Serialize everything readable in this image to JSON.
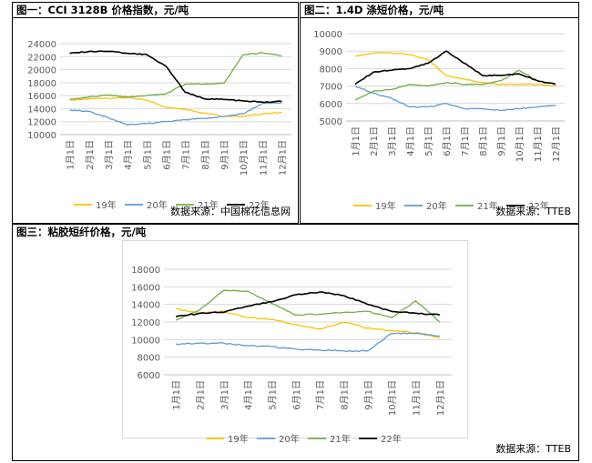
{
  "panels": [
    {
      "title": "图一：CCI 3128B 价格指数，元/吨",
      "source": "数据来源：中国棉花信息网"
    },
    {
      "title": "图二：1.4D 涤短价格，元/吨",
      "source": "数据来源：TTEB"
    },
    {
      "title": "图三：粘胶短纤价格，元/吨",
      "source": "数据来源：TTEB"
    }
  ],
  "colors": {
    "19年": "#FFC000",
    "20年": "#5B9BD5",
    "21年": "#70AD47",
    "22年": "#000000",
    "grid": "#D9D9D9"
  },
  "chart_data": [
    {
      "type": "line",
      "title": "图一：CCI 3128B 价格指数，元/吨",
      "categories": [
        "1月1日",
        "2月1日",
        "3月1日",
        "4月1日",
        "5月1日",
        "6月1日",
        "7月1日",
        "8月1日",
        "9月1日",
        "10月1日",
        "11月1日",
        "12月1日"
      ],
      "y_ticks": [
        10000,
        12000,
        14000,
        16000,
        18000,
        20000,
        22000,
        24000
      ],
      "ylim": [
        10000,
        24000
      ],
      "legend": "bottom",
      "series": [
        {
          "name": "19年",
          "color": "#FFC000",
          "values": [
            15300,
            15500,
            15600,
            15700,
            15300,
            14200,
            13900,
            13300,
            12800,
            12800,
            13200,
            13400
          ]
        },
        {
          "name": "20年",
          "color": "#5B9BD5",
          "values": [
            13800,
            13600,
            12600,
            11500,
            11700,
            12000,
            12300,
            12500,
            12800,
            13200,
            14800,
            14900
          ]
        },
        {
          "name": "21年",
          "color": "#70AD47",
          "values": [
            15400,
            15800,
            16100,
            15800,
            16000,
            16300,
            17800,
            17800,
            17900,
            22300,
            22600,
            22100
          ]
        },
        {
          "name": "22年",
          "color": "#000000",
          "values": [
            22500,
            22800,
            22800,
            22500,
            22300,
            20500,
            16500,
            15500,
            15400,
            15200,
            15000,
            15100
          ]
        }
      ],
      "source": "数据来源：中国棉花信息网"
    },
    {
      "type": "line",
      "title": "图二：1.4D 涤短价格，元/吨",
      "categories": [
        "1月1日",
        "2月1日",
        "3月1日",
        "4月1日",
        "5月1日",
        "6月1日",
        "7月1日",
        "8月1日",
        "9月1日",
        "10月1日",
        "11月1日",
        "12月1日"
      ],
      "y_ticks": [
        5000,
        6000,
        7000,
        8000,
        9000,
        10000
      ],
      "ylim": [
        5000,
        10000
      ],
      "legend": "bottom",
      "series": [
        {
          "name": "19年",
          "color": "#FFC000",
          "values": [
            8700,
            8900,
            8900,
            8800,
            8500,
            7600,
            7400,
            7200,
            7100,
            7100,
            7100,
            7000
          ]
        },
        {
          "name": "20年",
          "color": "#5B9BD5",
          "values": [
            7000,
            6600,
            6300,
            5800,
            5800,
            6000,
            5700,
            5700,
            5600,
            5700,
            5800,
            5900
          ]
        },
        {
          "name": "21年",
          "color": "#70AD47",
          "values": [
            6200,
            6700,
            6800,
            7100,
            7000,
            7200,
            7100,
            7100,
            7300,
            7900,
            7300,
            7100
          ]
        },
        {
          "name": "22年",
          "color": "#000000",
          "values": [
            7100,
            7800,
            7900,
            8000,
            8300,
            9000,
            8300,
            7600,
            7600,
            7700,
            7300,
            7100
          ]
        }
      ],
      "source": "数据来源：TTEB"
    },
    {
      "type": "line",
      "title": "图三：粘胶短纤价格，元/吨",
      "categories": [
        "1月1日",
        "2月1日",
        "3月1日",
        "4月1日",
        "5月1日",
        "6月1日",
        "7月1日",
        "8月1日",
        "9月1日",
        "10月1日",
        "11月1日",
        "12月1日"
      ],
      "y_ticks": [
        6000,
        8000,
        10000,
        12000,
        14000,
        16000,
        18000
      ],
      "ylim": [
        6000,
        18000
      ],
      "legend": "bottom",
      "series": [
        {
          "name": "19年",
          "color": "#FFC000",
          "values": [
            13500,
            13000,
            13200,
            12500,
            12300,
            11700,
            11200,
            12000,
            11300,
            11000,
            10800,
            10200
          ]
        },
        {
          "name": "20年",
          "color": "#5B9BD5",
          "values": [
            9500,
            9600,
            9600,
            9300,
            9200,
            8900,
            8800,
            8700,
            8700,
            10700,
            10700,
            10400
          ]
        },
        {
          "name": "21年",
          "color": "#70AD47",
          "values": [
            12200,
            13400,
            15600,
            15500,
            14100,
            12800,
            12900,
            13100,
            13200,
            12500,
            14400,
            12000
          ]
        },
        {
          "name": "22年",
          "color": "#000000",
          "values": [
            12600,
            13000,
            13100,
            13800,
            14300,
            15100,
            15400,
            15000,
            14000,
            13200,
            13000,
            12800
          ]
        }
      ],
      "source": "数据来源：TTEB"
    }
  ]
}
